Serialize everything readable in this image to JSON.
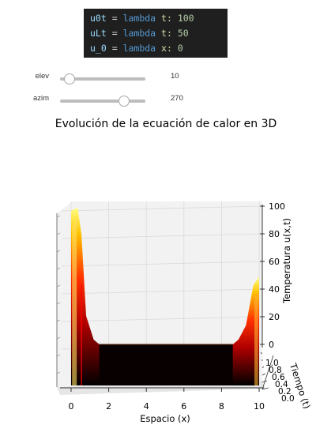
{
  "code": {
    "lines": [
      {
        "var": "u0t",
        "op": " = ",
        "kw": "lambda",
        "param": " t: ",
        "num": "100"
      },
      {
        "var": "uLt",
        "op": " = ",
        "kw": "lambda",
        "param": " t: ",
        "num": "50"
      },
      {
        "var": "u_0",
        "op": " = ",
        "kw": "lambda",
        "param": " x: ",
        "num": "0"
      }
    ]
  },
  "controls": {
    "elev": {
      "label": "elev",
      "value": "10",
      "min": 0,
      "max": 90,
      "current": 10
    },
    "azim": {
      "label": "azim",
      "value": "270",
      "min": 0,
      "max": 360,
      "current": 270
    }
  },
  "chart_data": {
    "type": "surface3d",
    "title": "Evolución de la ecuación de calor en 3D",
    "xlabel": "Espacio (x)",
    "ylabel": "Tiempo (t)",
    "zlabel": "Temperatura u(x,t)",
    "x_ticks": [
      "0",
      "2",
      "4",
      "6",
      "8",
      "10"
    ],
    "y_ticks": [
      "0.0",
      "0.2",
      "0.4",
      "0.6",
      "0.8",
      "1.0"
    ],
    "z_ticks": [
      "0",
      "20",
      "40",
      "60",
      "80",
      "100"
    ],
    "xlim": [
      0,
      10
    ],
    "ylim": [
      0,
      1
    ],
    "zlim": [
      0,
      100
    ],
    "boundary_left": 100,
    "boundary_right": 50,
    "initial": 0,
    "colormap": "hot"
  }
}
